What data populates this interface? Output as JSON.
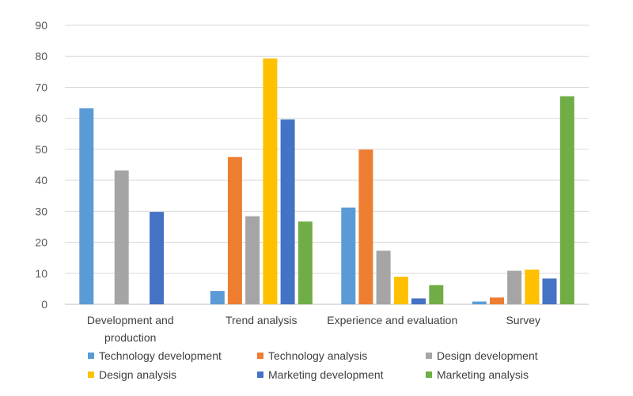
{
  "chart_data": {
    "type": "bar",
    "title": "",
    "xlabel": "",
    "ylabel": "",
    "ylim": [
      0,
      90
    ],
    "yticks": [
      0,
      10,
      20,
      30,
      40,
      50,
      60,
      70,
      80,
      90
    ],
    "grid": true,
    "legend_position": "bottom",
    "categories": [
      [
        "Development and",
        "production"
      ],
      [
        "Trend analysis"
      ],
      [
        "Experience and evaluation"
      ],
      [
        "Survey"
      ]
    ],
    "series": [
      {
        "name": "Technology development",
        "color": "#5B9BD5",
        "values": [
          63.2,
          4.3,
          31.2,
          0.9
        ]
      },
      {
        "name": "Technology analysis",
        "color": "#ED7D31",
        "values": [
          0,
          47.5,
          49.9,
          2.2
        ]
      },
      {
        "name": "Design development",
        "color": "#A5A5A5",
        "values": [
          43.2,
          28.4,
          17.3,
          10.8
        ]
      },
      {
        "name": "Design analysis",
        "color": "#FFC000",
        "values": [
          0,
          79.3,
          8.9,
          11.2
        ]
      },
      {
        "name": "Marketing development",
        "color": "#4472C4",
        "values": [
          29.8,
          59.6,
          1.9,
          8.3
        ]
      },
      {
        "name": "Marketing analysis",
        "color": "#70AD47",
        "values": [
          0,
          26.7,
          6.2,
          67.1
        ]
      }
    ]
  }
}
